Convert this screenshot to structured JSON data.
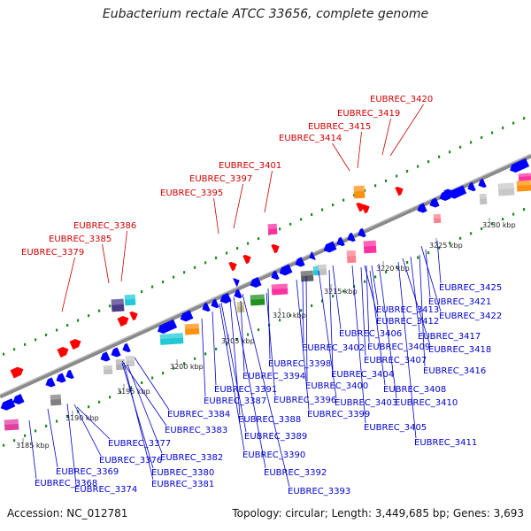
{
  "title": "Eubacterium rectale ATCC 33656, complete genome",
  "footer": {
    "accession": "Accession: NC_012781",
    "summary": "Topology: circular; Length: 3,449,685 bp; Genes: 3,693"
  },
  "colors": {
    "backbone": "#888888",
    "tick": "#1a8a1a",
    "red_label": "#cc0000",
    "blue_label": "#0000cc",
    "forward_gene": "#ff0000",
    "reverse_gene": "#0000ff"
  },
  "scale_labels": [
    {
      "text": "3185 kbp"
    },
    {
      "text": "3190 kbp"
    },
    {
      "text": "3195 kbp"
    },
    {
      "text": "3200 kbp"
    },
    {
      "text": "3205 kbp"
    },
    {
      "text": "3210 kbp"
    },
    {
      "text": "3215 kbp"
    },
    {
      "text": "3220 kbp"
    },
    {
      "text": "3225 kbp"
    },
    {
      "text": "3230 kbp"
    }
  ],
  "forward_genes": [
    "EUBREC_3379",
    "EUBREC_3385",
    "EUBREC_3386",
    "EUBREC_3395",
    "EUBREC_3397",
    "EUBREC_3401",
    "EUBREC_3414",
    "EUBREC_3415",
    "EUBREC_3419",
    "EUBREC_3420"
  ],
  "reverse_genes": [
    "EUBREC_3425",
    "EUBREC_3421",
    "EUBREC_3422",
    "EUBREC_3413",
    "EUBREC_3412",
    "EUBREC_3417",
    "EUBREC_3418",
    "EUBREC_3406",
    "EUBREC_3409",
    "EUBREC_3407",
    "EUBREC_3402",
    "EUBREC_3416",
    "EUBREC_3398",
    "EUBREC_3404",
    "EUBREC_3394",
    "EUBREC_3400",
    "EUBREC_3408",
    "EUBREC_3391",
    "EUBREC_3396",
    "EUBREC_3403",
    "EUBREC_3410",
    "EUBREC_3387",
    "EUBREC_3399",
    "EUBREC_3384",
    "EUBREC_3388",
    "EUBREC_3405",
    "EUBREC_3383",
    "EUBREC_3389",
    "EUBREC_3411",
    "EUBREC_3377",
    "EUBREC_3382",
    "EUBREC_3390",
    "EUBREC_3376",
    "EUBREC_3369",
    "EUBREC_3380",
    "EUBREC_3392",
    "EUBREC_3368",
    "EUBREC_3381",
    "EUBREC_3374",
    "EUBREC_3393"
  ]
}
